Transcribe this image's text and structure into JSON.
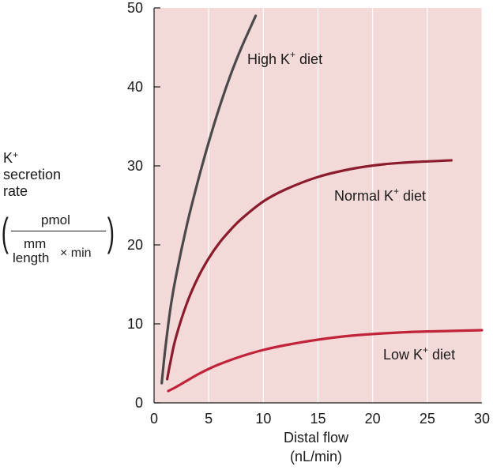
{
  "chart_data": {
    "type": "line",
    "title": "",
    "xlabel": "Distal flow",
    "xlabel_unit": "(nL/min)",
    "ylabel": {
      "line1": "K",
      "line1_sup": "+",
      "line2": "secretion",
      "line3": "rate",
      "unit_numerator": "pmol",
      "unit_denominator_1": "mm",
      "unit_denominator_2": "length",
      "unit_denominator_times": "× min"
    },
    "xlim": [
      0,
      30
    ],
    "ylim": [
      0,
      50
    ],
    "xticks": [
      0,
      5,
      10,
      15,
      20,
      25,
      30
    ],
    "yticks": [
      0,
      10,
      20,
      30,
      40,
      50
    ],
    "plot_background": "#f4d9d9",
    "grid": "vertical",
    "series": [
      {
        "name": "High K",
        "name_sup": "+",
        "name_suffix": " diet",
        "color": "#4a4a4a",
        "x": [
          0.7,
          1.0,
          1.5,
          2.0,
          3.0,
          4.0,
          5.0,
          6.0,
          7.0,
          8.0,
          9.3
        ],
        "y": [
          2.5,
          6.5,
          12.0,
          16.0,
          22.5,
          28.0,
          33.0,
          37.5,
          41.5,
          45.0,
          49.0
        ]
      },
      {
        "name": "Normal K",
        "name_sup": "+",
        "name_suffix": " diet",
        "color": "#8b1c2c",
        "x": [
          1.2,
          1.5,
          2.0,
          3.0,
          4.0,
          5.0,
          6.0,
          7.0,
          8.0,
          10.0,
          12.0,
          15.0,
          18.0,
          21.0,
          24.0,
          27.2
        ],
        "y": [
          3.0,
          5.2,
          8.3,
          12.6,
          15.8,
          18.3,
          20.3,
          21.9,
          23.3,
          25.5,
          27.0,
          28.6,
          29.6,
          30.2,
          30.5,
          30.7
        ]
      },
      {
        "name": "Low K",
        "name_sup": "+",
        "name_suffix": " diet",
        "color": "#c0233a",
        "x": [
          1.3,
          2.0,
          3.0,
          4.0,
          5.0,
          6.0,
          8.0,
          10.0,
          12.0,
          15.0,
          18.0,
          21.0,
          24.0,
          27.0,
          30.0
        ],
        "y": [
          1.5,
          2.0,
          2.8,
          3.6,
          4.3,
          4.9,
          5.9,
          6.7,
          7.3,
          8.0,
          8.5,
          8.8,
          9.0,
          9.1,
          9.2
        ]
      }
    ]
  }
}
